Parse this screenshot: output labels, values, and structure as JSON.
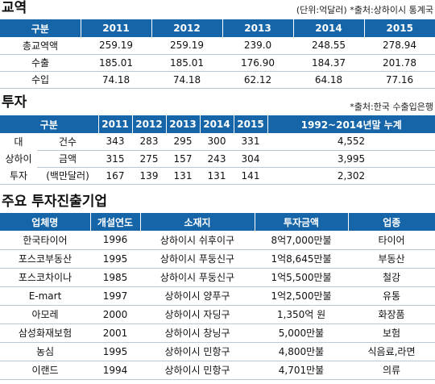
{
  "trade": {
    "title": "교역",
    "note": "(단위:억달러) *출처:상하이시 통계국",
    "headers": [
      "구분",
      "2011",
      "2012",
      "2013",
      "2014",
      "2015"
    ],
    "rows": [
      [
        "총교역액",
        "259.19",
        "259.19",
        "239.0",
        "248.55",
        "278.94"
      ],
      [
        "수출",
        "185.01",
        "185.01",
        "176.90",
        "184.37",
        "201.78"
      ],
      [
        "수입",
        "74.18",
        "74.18",
        "62.12",
        "64.18",
        "77.16"
      ]
    ]
  },
  "invest": {
    "title": "투자",
    "note": "*출처:한국 수출입은행",
    "headers": [
      "구분",
      "2011",
      "2012",
      "2013",
      "2014",
      "2015",
      "1992~2014년말 누계"
    ],
    "rows": [
      {
        "g1": "대",
        "g2": "건수",
        "v": [
          "343",
          "283",
          "295",
          "300",
          "331",
          "4,552"
        ]
      },
      {
        "g1": "상하이",
        "g2": "금액",
        "v": [
          "315",
          "275",
          "157",
          "243",
          "304",
          "3,995"
        ]
      },
      {
        "g1": "투자",
        "g2": "(백만달러)",
        "v": [
          "167",
          "139",
          "131",
          "131",
          "141",
          "2,302"
        ]
      }
    ]
  },
  "companies": {
    "title": "주요 투자진출기업",
    "headers": [
      "업체명",
      "개설연도",
      "소재지",
      "투자금액",
      "업종"
    ],
    "rows": [
      [
        "한국타이어",
        "1996",
        "상하이시 쉬후이구",
        "8억7,000만불",
        "타이어"
      ],
      [
        "포스코부동산",
        "1995",
        "상하이시 푸둥신구",
        "1억8,645만불",
        "부동산"
      ],
      [
        "포스코차이나",
        "1985",
        "상하이시 푸둥신구",
        "1억5,500만불",
        "철강"
      ],
      [
        "E-mart",
        "1997",
        "상하이시 양푸구",
        "1억2,500만불",
        "유통"
      ],
      [
        "아모레",
        "2000",
        "상하이시 자딩구",
        "1,350억 원",
        "화장품"
      ],
      [
        "삼성화재보험",
        "2001",
        "상하이시 창닝구",
        "5,000만불",
        "보험"
      ],
      [
        "농심",
        "1995",
        "상하이시 민항구",
        "4,800만불",
        "식음료,라면"
      ],
      [
        "이랜드",
        "1994",
        "상하이시 민항구",
        "4,701만불",
        "의류"
      ]
    ]
  }
}
